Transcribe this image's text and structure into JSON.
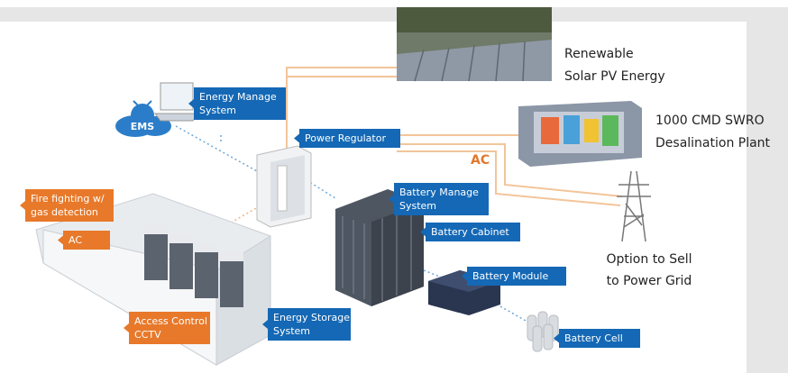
{
  "solar_label": [
    "Renewable",
    "Solar PV Energy"
  ],
  "desalination_label": [
    "1000 CMD SWRO",
    "Desalination Plant"
  ],
  "grid_label": [
    "Option to Sell",
    "to Power Grid"
  ],
  "flow_label": "AC",
  "ems_label": "EMS",
  "blue_callouts": [
    [
      "Energy Manage",
      "System"
    ],
    [
      "Power Regulator"
    ],
    [
      "Battery Manage",
      "System"
    ],
    [
      "Battery Cabinet"
    ],
    [
      "Battery Module"
    ],
    [
      "Battery Cell"
    ],
    [
      "Energy Storage",
      "System"
    ]
  ],
  "orange_callouts": [
    [
      "Fire fighting w/",
      "gas detection"
    ],
    [
      "AC"
    ],
    [
      "Access Control",
      "CCTV"
    ]
  ]
}
